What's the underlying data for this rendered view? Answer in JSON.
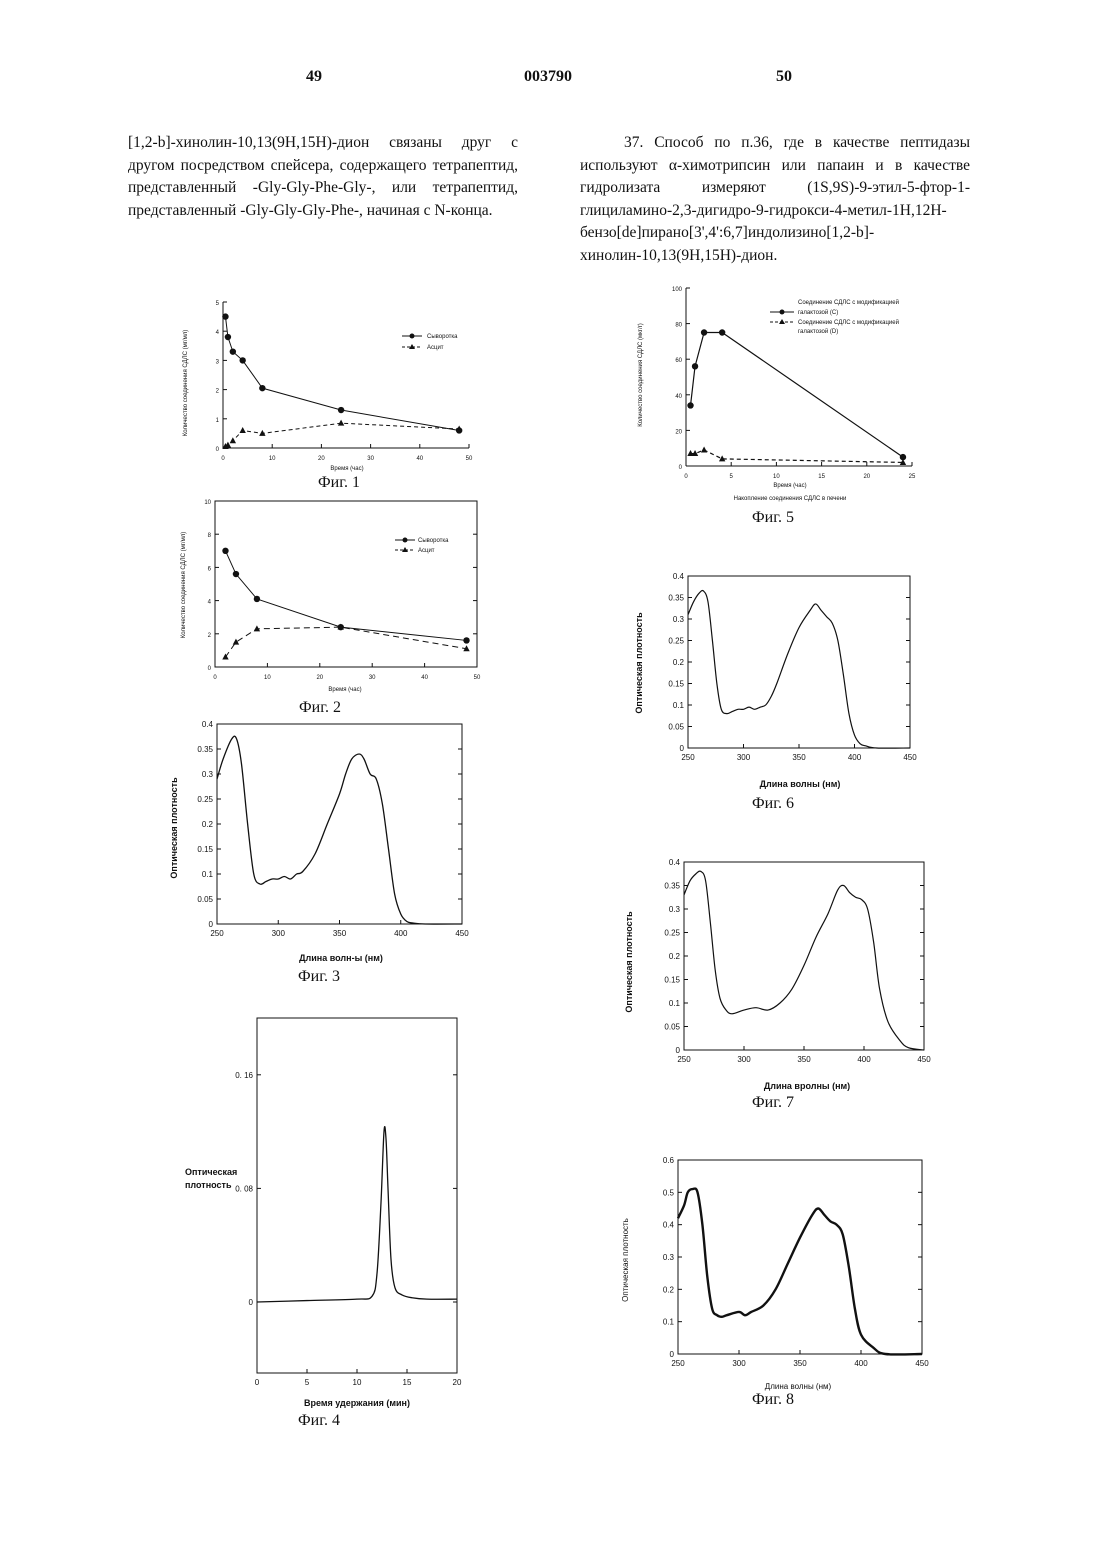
{
  "header": {
    "left_page": "49",
    "patent_number": "003790",
    "right_page": "50"
  },
  "text": {
    "left": "[1,2-b]-хинолин-10,13(9H,15H)-дион связаны друг с другом посредством спейсера, содержащего тетрапептид, представленный -Gly-Gly-Phe-Gly-, или тетрапептид, представленный -Gly-Gly-Gly-Phe-, начиная с N-конца.",
    "right": "37. Способ по п.36, где в качестве пептидазы используют α-химотрипсин или папаин и в качестве гидролизата измеряют (1S,9S)-9-этил-5-фтор-1-глициламино-2,3-дигидро-9-гидрокси-4-метил-1H,12H-бензо[de]пирано[3',4':6,7]индолизино[1,2-b]-хинолин-10,13(9H,15H)-дион."
  },
  "figures": {
    "fig1": {
      "caption": "Фиг. 1",
      "xlabel": "Время (час)",
      "ylabel": "Количество соединения СДЛС (мг/мл)",
      "legend1": "Сыворотка",
      "legend2": "Асцит"
    },
    "fig2": {
      "caption": "Фиг. 2",
      "xlabel": "Время (час)",
      "ylabel": "Количество соединения СДЛС (мг/мл)",
      "legend1": "Сыворотка",
      "legend2": "Асцит"
    },
    "fig3": {
      "caption": "Фиг. 3",
      "xlabel": "Длина волн-ы (нм)",
      "ylabel": "Оптическая плотность"
    },
    "fig4": {
      "caption": "Фиг. 4",
      "xlabel": "Время удержания (мин)",
      "ylabel_line1": "Оптическая",
      "ylabel_line2": "плотность"
    },
    "fig5": {
      "caption": "Фиг. 5",
      "xlabel": "Время (час)",
      "subtitle": "Накопление соединения СДЛС в печени",
      "ylabel": "Количество соединения СДЛС (мкг/г)",
      "legend1a": "Соединение СДЛС с модификацией",
      "legend1b": "галактозой (С)",
      "legend2a": "Соединение СДЛС с модификацией",
      "legend2b": "галактозой (D)"
    },
    "fig6": {
      "caption": "Фиг. 6",
      "xlabel": "Длина волны (нм)",
      "ylabel": "Оптическая плотность"
    },
    "fig7": {
      "caption": "Фиг. 7",
      "xlabel": "Длина вролны (нм)",
      "ylabel": "Оптическая плотность"
    },
    "fig8": {
      "caption": "Фиг. 8",
      "xlabel": "Длина волны (нм)",
      "ylabel": "Оптическая плотность"
    }
  },
  "chart_data": [
    {
      "id": "fig1",
      "type": "line",
      "xlim": [
        0,
        50
      ],
      "ylim": [
        0,
        5
      ],
      "xticks": [
        0,
        10,
        20,
        30,
        40,
        50
      ],
      "yticks": [
        0,
        1,
        2,
        3,
        4,
        5
      ],
      "series": [
        {
          "name": "Сыворотка",
          "x": [
            0.5,
            1,
            2,
            4,
            8,
            24,
            48
          ],
          "y": [
            4.5,
            3.8,
            3.3,
            3.0,
            2.05,
            1.3,
            0.6
          ]
        },
        {
          "name": "Асцит",
          "x": [
            0.5,
            1,
            2,
            4,
            8,
            24,
            48
          ],
          "y": [
            0.05,
            0.1,
            0.25,
            0.6,
            0.5,
            0.85,
            0.65
          ]
        }
      ]
    },
    {
      "id": "fig2",
      "type": "line",
      "xlim": [
        0,
        50
      ],
      "ylim": [
        0,
        10
      ],
      "xticks": [
        0,
        10,
        20,
        30,
        40,
        50
      ],
      "yticks": [
        0,
        2,
        4,
        6,
        8,
        10
      ],
      "series": [
        {
          "name": "Сыворотка",
          "x": [
            2,
            4,
            8,
            24,
            48
          ],
          "y": [
            7.0,
            5.6,
            4.1,
            2.4,
            1.6
          ]
        },
        {
          "name": "Асцит",
          "x": [
            2,
            4,
            8,
            24,
            48
          ],
          "y": [
            0.6,
            1.5,
            2.3,
            2.4,
            1.1
          ]
        }
      ]
    },
    {
      "id": "fig3",
      "type": "line",
      "xlim": [
        250,
        450
      ],
      "ylim": [
        0,
        0.4
      ],
      "xticks": [
        250,
        300,
        350,
        400,
        450
      ],
      "yticks": [
        0,
        0.05,
        0.1,
        0.15,
        0.2,
        0.25,
        0.3,
        0.35,
        0.4
      ],
      "series": [
        {
          "x": [
            250,
            255,
            262,
            266,
            270,
            275,
            280,
            285,
            290,
            295,
            300,
            305,
            310,
            315,
            320,
            330,
            340,
            350,
            355,
            360,
            366,
            370,
            375,
            380,
            385,
            390,
            395,
            400,
            405,
            410,
            420,
            450
          ],
          "y": [
            0.29,
            0.33,
            0.37,
            0.37,
            0.32,
            0.2,
            0.1,
            0.08,
            0.085,
            0.09,
            0.09,
            0.095,
            0.09,
            0.1,
            0.105,
            0.14,
            0.2,
            0.26,
            0.3,
            0.33,
            0.34,
            0.33,
            0.3,
            0.29,
            0.24,
            0.15,
            0.06,
            0.02,
            0.005,
            0.002,
            0,
            0
          ]
        }
      ]
    },
    {
      "id": "fig4",
      "type": "line",
      "xlim": [
        0,
        20
      ],
      "ylim": [
        -0.05,
        0.2
      ],
      "xticks": [
        0,
        5,
        10,
        15,
        20
      ],
      "yticks": [
        0,
        0.08,
        0.16
      ],
      "series": [
        {
          "x": [
            0,
            5,
            10,
            11.5,
            12,
            12.4,
            12.7,
            12.9,
            13.1,
            13.4,
            13.8,
            14.5,
            15.5,
            17,
            20
          ],
          "y": [
            0,
            0.001,
            0.002,
            0.004,
            0.02,
            0.07,
            0.12,
            0.115,
            0.08,
            0.03,
            0.01,
            0.005,
            0.003,
            0.002,
            0.002
          ]
        }
      ]
    },
    {
      "id": "fig5",
      "type": "line",
      "xlim": [
        0,
        25
      ],
      "ylim": [
        0,
        100
      ],
      "xticks": [
        0,
        5,
        10,
        15,
        20,
        25
      ],
      "yticks": [
        0,
        20,
        40,
        60,
        80,
        100
      ],
      "series": [
        {
          "name": "С",
          "x": [
            0.5,
            1,
            2,
            4,
            24
          ],
          "y": [
            34,
            56,
            75,
            75,
            5
          ]
        },
        {
          "name": "D",
          "x": [
            0.5,
            1,
            2,
            4,
            24
          ],
          "y": [
            7,
            7,
            9,
            4,
            2
          ]
        }
      ]
    },
    {
      "id": "fig6",
      "type": "line",
      "xlim": [
        250,
        450
      ],
      "ylim": [
        0,
        0.4
      ],
      "xticks": [
        250,
        300,
        350,
        400,
        450
      ],
      "yticks": [
        0,
        0.05,
        0.1,
        0.15,
        0.2,
        0.25,
        0.3,
        0.35,
        0.4
      ],
      "series": [
        {
          "x": [
            250,
            255,
            260,
            264,
            268,
            272,
            276,
            280,
            285,
            290,
            295,
            300,
            305,
            310,
            315,
            320,
            325,
            330,
            340,
            350,
            360,
            365,
            370,
            375,
            380,
            385,
            390,
            395,
            400,
            405,
            410,
            420,
            450
          ],
          "y": [
            0.31,
            0.34,
            0.36,
            0.365,
            0.34,
            0.25,
            0.15,
            0.09,
            0.08,
            0.085,
            0.09,
            0.09,
            0.095,
            0.09,
            0.095,
            0.1,
            0.12,
            0.15,
            0.22,
            0.28,
            0.32,
            0.335,
            0.32,
            0.305,
            0.29,
            0.25,
            0.17,
            0.08,
            0.03,
            0.01,
            0.005,
            0,
            0
          ]
        }
      ]
    },
    {
      "id": "fig7",
      "type": "line",
      "xlim": [
        250,
        450
      ],
      "ylim": [
        0,
        0.4
      ],
      "xticks": [
        250,
        300,
        350,
        400,
        450
      ],
      "yticks": [
        0,
        0.05,
        0.1,
        0.15,
        0.2,
        0.25,
        0.3,
        0.35,
        0.4
      ],
      "series": [
        {
          "x": [
            250,
            255,
            260,
            264,
            268,
            272,
            276,
            280,
            285,
            290,
            300,
            310,
            320,
            330,
            340,
            350,
            360,
            370,
            378,
            383,
            388,
            393,
            398,
            403,
            408,
            413,
            420,
            430,
            437,
            450
          ],
          "y": [
            0.33,
            0.36,
            0.375,
            0.38,
            0.36,
            0.27,
            0.17,
            0.11,
            0.085,
            0.077,
            0.085,
            0.09,
            0.085,
            0.1,
            0.13,
            0.18,
            0.24,
            0.29,
            0.34,
            0.35,
            0.335,
            0.325,
            0.32,
            0.3,
            0.23,
            0.13,
            0.06,
            0.02,
            0.005,
            0
          ]
        }
      ]
    },
    {
      "id": "fig8",
      "type": "line",
      "xlim": [
        250,
        450
      ],
      "ylim": [
        0,
        0.6
      ],
      "xticks": [
        250,
        300,
        350,
        400,
        450
      ],
      "yticks": [
        0,
        0.1,
        0.2,
        0.3,
        0.4,
        0.5,
        0.6
      ],
      "series": [
        {
          "x": [
            250,
            255,
            258,
            262,
            266,
            270,
            274,
            278,
            282,
            286,
            290,
            300,
            305,
            310,
            320,
            330,
            340,
            350,
            360,
            365,
            370,
            375,
            380,
            385,
            390,
            395,
            400,
            410,
            420,
            450
          ],
          "y": [
            0.42,
            0.46,
            0.5,
            0.51,
            0.5,
            0.4,
            0.24,
            0.14,
            0.12,
            0.115,
            0.12,
            0.13,
            0.12,
            0.13,
            0.15,
            0.2,
            0.28,
            0.36,
            0.43,
            0.45,
            0.43,
            0.41,
            0.4,
            0.37,
            0.27,
            0.14,
            0.06,
            0.02,
            0,
            0
          ]
        }
      ]
    }
  ]
}
